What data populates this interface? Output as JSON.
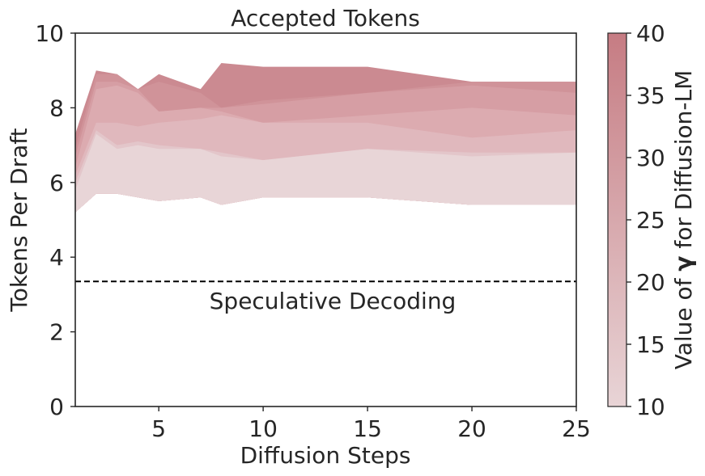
{
  "chart_data": {
    "type": "area",
    "title": "Accepted Tokens",
    "xlabel": "Diffusion Steps",
    "ylabel": "Tokens Per Draft",
    "xlim": [
      1,
      25
    ],
    "ylim": [
      0,
      10
    ],
    "xticks": [
      5,
      10,
      15,
      20,
      25
    ],
    "yticks": [
      0,
      2,
      4,
      6,
      8,
      10
    ],
    "grid": false,
    "baseline": {
      "label": "Speculative Decoding",
      "y": 3.35,
      "style": "dashed"
    },
    "colorbar": {
      "label_prefix": "Value of ",
      "label_symbol": "γ",
      "label_suffix": " for Diffusion-LM",
      "range": [
        10,
        40
      ],
      "ticks": [
        10,
        15,
        20,
        25,
        30,
        35,
        40
      ],
      "color_low": "#e8d4d6",
      "color_high": "#c67c83"
    },
    "x": [
      1,
      2,
      3,
      4,
      5,
      7,
      8,
      10,
      15,
      20,
      25
    ],
    "bands": [
      {
        "gamma": 40,
        "color": "#cb8a91",
        "upper": [
          7.3,
          9.0,
          8.9,
          8.5,
          8.9,
          8.5,
          9.2,
          9.1,
          9.1,
          8.7,
          8.7
        ]
      },
      {
        "gamma": 35,
        "color": "#d09399",
        "upper": [
          6.9,
          8.9,
          8.9,
          8.5,
          8.7,
          8.4,
          8.0,
          8.2,
          8.4,
          8.7,
          8.7
        ]
      },
      {
        "gamma": 30,
        "color": "#d69ea4",
        "upper": [
          6.7,
          8.7,
          8.7,
          8.5,
          7.9,
          8.0,
          8.0,
          8.1,
          8.4,
          8.6,
          8.4
        ]
      },
      {
        "gamma": 25,
        "color": "#dcabb0",
        "upper": [
          6.4,
          8.5,
          8.6,
          8.4,
          7.9,
          8.0,
          7.9,
          7.6,
          7.8,
          8.0,
          7.8
        ]
      },
      {
        "gamma": 20,
        "color": "#e0b8bd",
        "upper": [
          6.2,
          7.6,
          7.6,
          7.5,
          7.6,
          7.7,
          7.8,
          7.6,
          7.6,
          7.2,
          7.4
        ]
      },
      {
        "gamma": 15,
        "color": "#e3c6ca",
        "upper": [
          6.0,
          7.4,
          7.0,
          7.1,
          7.0,
          6.9,
          6.8,
          6.6,
          6.9,
          6.8,
          6.8
        ]
      },
      {
        "gamma": 10,
        "color": "#e8d5d7",
        "upper": [
          5.8,
          7.3,
          6.9,
          7.0,
          6.9,
          6.9,
          6.7,
          6.6,
          6.9,
          6.7,
          6.8
        ]
      }
    ],
    "lower": [
      5.2,
      5.7,
      5.7,
      5.6,
      5.5,
      5.6,
      5.4,
      5.6,
      5.6,
      5.4,
      5.4
    ]
  }
}
